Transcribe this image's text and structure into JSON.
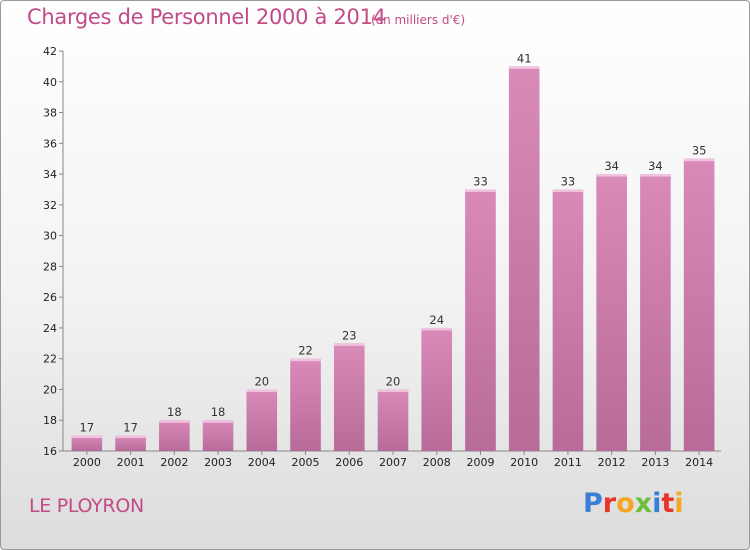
{
  "header": {
    "title": "Charges de Personnel 2000 à 2014",
    "subtitle": "(en milliers d'€)"
  },
  "footer": {
    "commune": "LE PLOYRON",
    "logo": "Proxiti",
    "logo_colors": [
      "#3a7fd5",
      "#e8332a",
      "#f5a623",
      "#6cbf3b",
      "#3a7fd5",
      "#e8332a",
      "#f5a623"
    ]
  },
  "chart_data": {
    "type": "bar",
    "title": "Charges de Personnel 2000 à 2014",
    "subtitle": "(en milliers d'€)",
    "categories": [
      "2000",
      "2001",
      "2002",
      "2003",
      "2004",
      "2005",
      "2006",
      "2007",
      "2008",
      "2009",
      "2010",
      "2011",
      "2012",
      "2013",
      "2014"
    ],
    "values": [
      17,
      17,
      18,
      18,
      20,
      22,
      23,
      20,
      24,
      33,
      41,
      33,
      34,
      34,
      35
    ],
    "ylim": [
      16,
      42
    ],
    "yticks": [
      16,
      18,
      20,
      22,
      24,
      26,
      28,
      30,
      32,
      34,
      36,
      38,
      40,
      42
    ],
    "grid": false,
    "bar_color": "#d98ab8",
    "bar_color_dark": "#b86a98",
    "xlabel": "",
    "ylabel": ""
  }
}
